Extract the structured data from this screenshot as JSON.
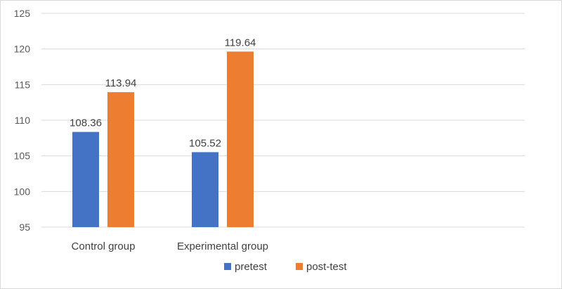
{
  "chart_data": {
    "type": "bar",
    "categories": [
      "Control group",
      "Experimental group"
    ],
    "series": [
      {
        "name": "pretest",
        "values": [
          108.36,
          105.52
        ],
        "color": "#4472c4"
      },
      {
        "name": "post-test",
        "values": [
          113.94,
          119.64
        ],
        "color": "#ed7d31"
      }
    ],
    "ylim": [
      95,
      125
    ],
    "yticks": [
      95,
      100,
      105,
      110,
      115,
      120,
      125
    ],
    "data_labels": [
      "108.36",
      "105.52",
      "113.94",
      "119.64"
    ],
    "grid": true,
    "legend_position": "bottom"
  }
}
